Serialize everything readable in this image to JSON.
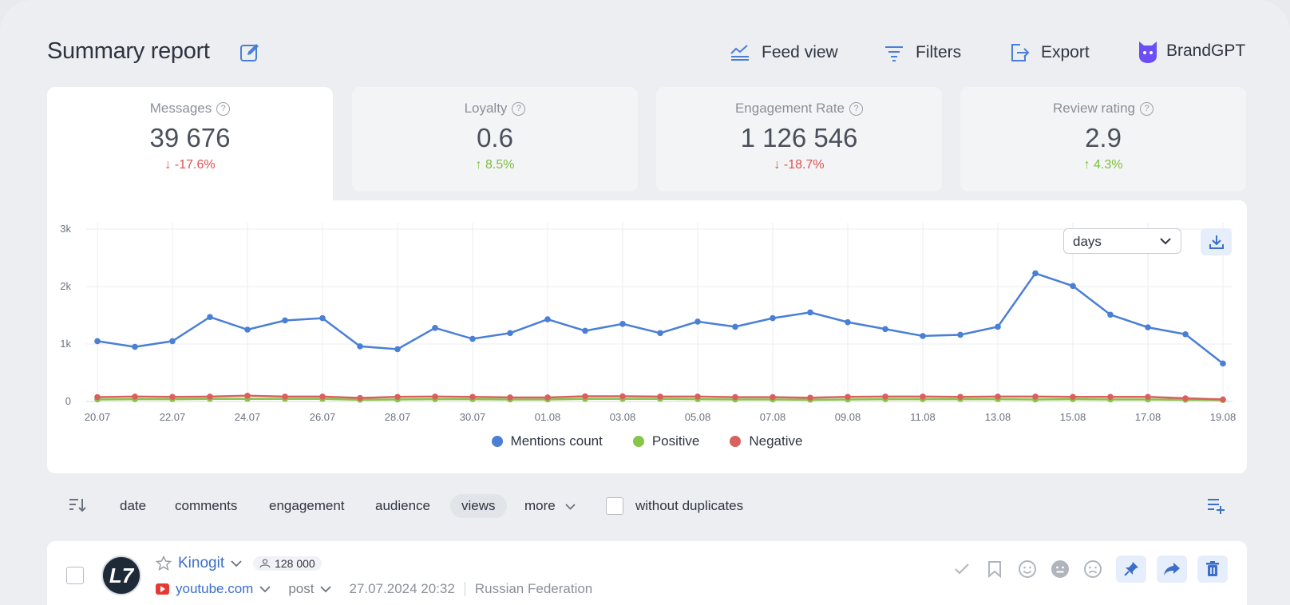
{
  "header": {
    "title": "Summary report",
    "feed_view": "Feed view",
    "filters": "Filters",
    "export": "Export",
    "brand": "BrandGPT"
  },
  "kpis": [
    {
      "label": "Messages",
      "value": "39 676",
      "delta": "↓ -17.6%",
      "trend": "down"
    },
    {
      "label": "Loyalty",
      "value": "0.6",
      "delta": "↑ 8.5%",
      "trend": "up"
    },
    {
      "label": "Engagement Rate",
      "value": "1 126 546",
      "delta": "↓ -18.7%",
      "trend": "down"
    },
    {
      "label": "Review rating",
      "value": "2.9",
      "delta": "↑ 4.3%",
      "trend": "up"
    }
  ],
  "chart_controls": {
    "granularity": "days"
  },
  "chart_data": {
    "type": "line",
    "x": [
      "20.07",
      "21.07",
      "22.07",
      "23.07",
      "24.07",
      "25.07",
      "26.07",
      "27.07",
      "28.07",
      "29.07",
      "30.07",
      "31.07",
      "01.08",
      "02.08",
      "03.08",
      "04.08",
      "05.08",
      "06.08",
      "07.08",
      "08.08",
      "09.08",
      "10.08",
      "11.08",
      "12.08",
      "13.08",
      "14.08",
      "15.08",
      "16.08",
      "17.08",
      "18.08",
      "19.08"
    ],
    "x_tick_labels": [
      "20.07",
      "22.07",
      "24.07",
      "26.07",
      "28.07",
      "30.07",
      "01.08",
      "03.08",
      "05.08",
      "07.08",
      "09.08",
      "11.08",
      "13.08",
      "15.08",
      "17.08",
      "19.08"
    ],
    "y_tick_labels": [
      "0",
      "1k",
      "2k",
      "3k"
    ],
    "ylim": [
      0,
      3000
    ],
    "grid": true,
    "legend_position": "bottom",
    "series": [
      {
        "name": "Mentions count",
        "color": "#4a7fd6",
        "values": [
          1050,
          950,
          1050,
          1470,
          1250,
          1410,
          1450,
          960,
          910,
          1280,
          1090,
          1190,
          1430,
          1230,
          1350,
          1190,
          1390,
          1300,
          1450,
          1550,
          1380,
          1260,
          1140,
          1160,
          1300,
          2230,
          2010,
          1510,
          1290,
          1170,
          660
        ]
      },
      {
        "name": "Positive",
        "color": "#86c44a",
        "values": [
          35,
          40,
          40,
          45,
          45,
          45,
          45,
          30,
          35,
          40,
          40,
          35,
          35,
          45,
          45,
          45,
          40,
          35,
          35,
          30,
          35,
          40,
          40,
          40,
          40,
          35,
          40,
          35,
          35,
          30,
          25
        ]
      },
      {
        "name": "Negative",
        "color": "#d9605c",
        "values": [
          75,
          85,
          80,
          85,
          100,
          85,
          85,
          60,
          80,
          85,
          80,
          70,
          70,
          90,
          90,
          85,
          85,
          75,
          75,
          65,
          80,
          85,
          85,
          80,
          85,
          85,
          80,
          80,
          80,
          55,
          35
        ]
      }
    ]
  },
  "sortbar": {
    "options": [
      "date",
      "comments",
      "engagement",
      "audience",
      "views",
      "more"
    ],
    "active": "views",
    "without_duplicates": "without duplicates"
  },
  "post": {
    "author": "Kinogit",
    "audience": "128 000",
    "source": "youtube.com",
    "type": "post",
    "date": "27.07.2024 20:32",
    "country": "Russian Federation",
    "avatar_text": "L7"
  }
}
